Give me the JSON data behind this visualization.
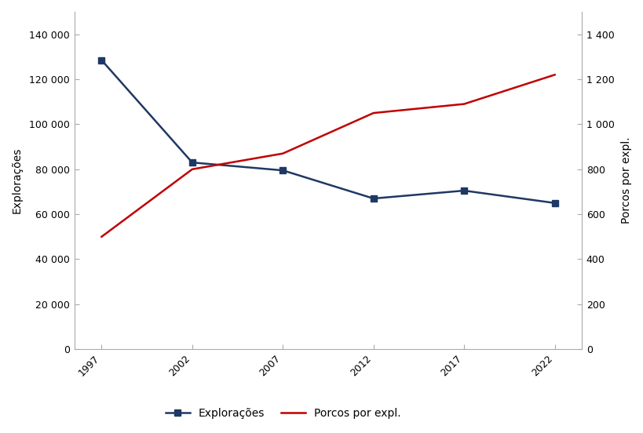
{
  "years": [
    1997,
    2002,
    2007,
    2012,
    2017,
    2022
  ],
  "exploracoes": [
    128500,
    83000,
    79500,
    67000,
    70500,
    65000
  ],
  "porcos_por_expl": [
    500,
    800,
    870,
    1050,
    1090,
    1220
  ],
  "left_label": "Explorações",
  "right_label": "Porcos por expl.",
  "left_ylim": [
    0,
    150000
  ],
  "right_ylim": [
    0,
    1500
  ],
  "left_yticks": [
    0,
    20000,
    40000,
    60000,
    80000,
    100000,
    120000,
    140000
  ],
  "right_yticks": [
    0,
    200,
    400,
    600,
    800,
    1000,
    1200,
    1400
  ],
  "xticks": [
    1997,
    2002,
    2007,
    2012,
    2017,
    2022
  ],
  "xlim": [
    1995.5,
    2023.5
  ],
  "line1_color": "#1F3864",
  "line2_color": "#C00000",
  "legend_label1": "Explorações",
  "legend_label2": "Porcos por expl.",
  "bg_color": "#FFFFFF",
  "marker_size": 6,
  "line_width": 1.8,
  "tick_color": "#888888",
  "spine_color": "#AAAAAA"
}
